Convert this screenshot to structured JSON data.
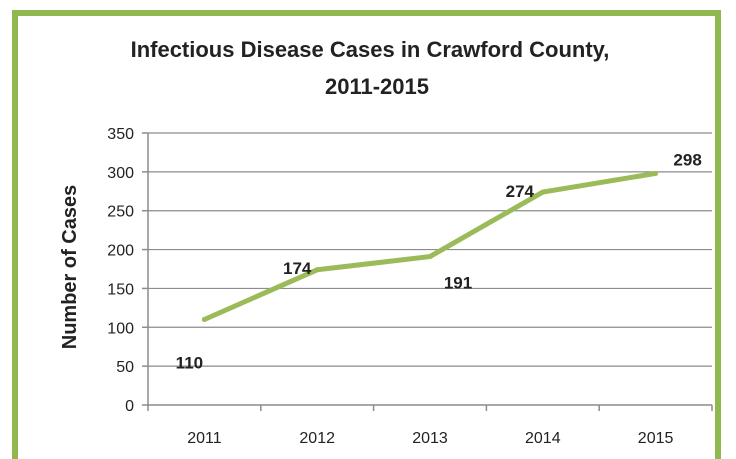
{
  "chart_data": {
    "type": "line",
    "title_lines": [
      "Infectious Disease Cases  in Crawford County,",
      "2011-2015"
    ],
    "xlabel": "",
    "ylabel": "Number of Cases",
    "categories": [
      "2011",
      "2012",
      "2013",
      "2014",
      "2015"
    ],
    "series": [
      {
        "values": [
          110,
          174,
          191,
          274,
          298
        ],
        "color": "#9bbb59"
      }
    ],
    "data_labels": [
      "110",
      "174",
      "191",
      "274",
      "298"
    ],
    "ylim": [
      0,
      350
    ],
    "yticks": [
      0,
      50,
      100,
      150,
      200,
      250,
      300,
      350
    ],
    "grid": true,
    "legend": "none"
  },
  "colors": {
    "frame": "#8fb84e",
    "line": "#9bbb59",
    "grid": "#8c8c8c"
  }
}
